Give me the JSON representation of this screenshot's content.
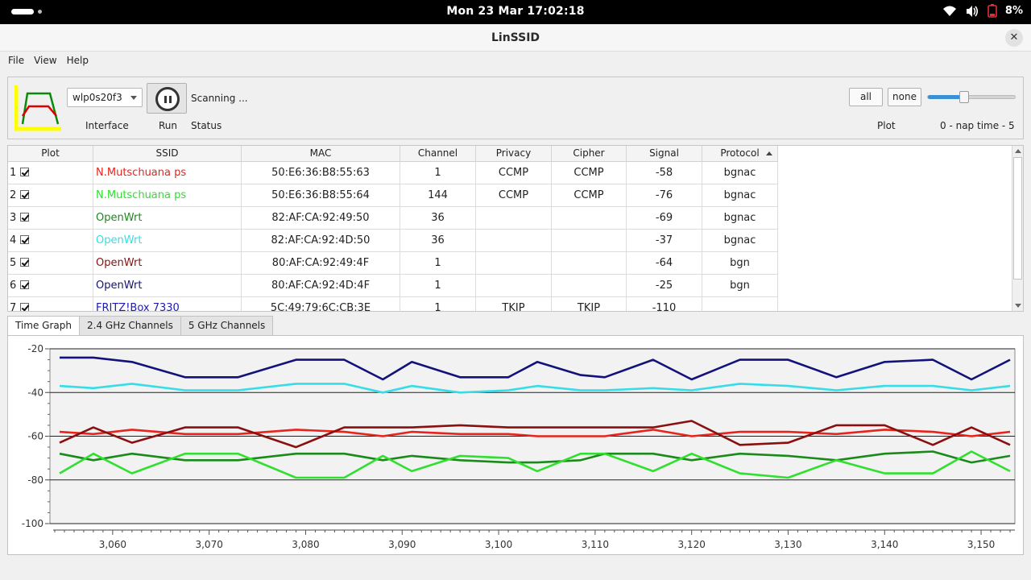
{
  "system_bar": {
    "clock": "Mon 23 Mar  17:02:18",
    "battery": "8%"
  },
  "window": {
    "title": "LinSSID"
  },
  "menu": [
    "File",
    "View",
    "Help"
  ],
  "controls": {
    "interface_value": "wlp0s20f3",
    "interface_label": "Interface",
    "run_label": "Run",
    "status_value": "Scanning ...",
    "status_label": "Status",
    "all_button": "all",
    "none_button": "none",
    "plot_label": "Plot",
    "nap_label": "0 - nap time - 5",
    "nap_time": 2
  },
  "table": {
    "columns": [
      "Plot",
      "SSID",
      "MAC",
      "Channel",
      "Privacy",
      "Cipher",
      "Signal",
      "Protocol"
    ],
    "rows": [
      {
        "num": "1",
        "ssid": "N.Mutschuana ps",
        "color": "#e8241c",
        "mac": "50:E6:36:B8:55:63",
        "channel": "1",
        "privacy": "CCMP",
        "cipher": "CCMP",
        "signal": "-58",
        "protocol": "bgnac"
      },
      {
        "num": "2",
        "ssid": "N.Mutschuana ps",
        "color": "#2fe02f",
        "mac": "50:E6:36:B8:55:64",
        "channel": "144",
        "privacy": "CCMP",
        "cipher": "CCMP",
        "signal": "-76",
        "protocol": "bgnac"
      },
      {
        "num": "3",
        "ssid": "OpenWrt",
        "color": "#1a8a1a",
        "mac": "82:AF:CA:92:49:50",
        "channel": "36",
        "privacy": "",
        "cipher": "",
        "signal": "-69",
        "protocol": "bgnac"
      },
      {
        "num": "4",
        "ssid": "OpenWrt",
        "color": "#36dde8",
        "mac": "82:AF:CA:92:4D:50",
        "channel": "36",
        "privacy": "",
        "cipher": "",
        "signal": "-37",
        "protocol": "bgnac"
      },
      {
        "num": "5",
        "ssid": "OpenWrt",
        "color": "#8a1010",
        "mac": "80:AF:CA:92:49:4F",
        "channel": "1",
        "privacy": "",
        "cipher": "",
        "signal": "-64",
        "protocol": "bgn"
      },
      {
        "num": "6",
        "ssid": "OpenWrt",
        "color": "#12127a",
        "mac": "80:AF:CA:92:4D:4F",
        "channel": "1",
        "privacy": "",
        "cipher": "",
        "signal": "-25",
        "protocol": "bgn"
      },
      {
        "num": "7",
        "ssid": "FRITZ!Box 7330",
        "color": "#1c1cb0",
        "mac": "5C:49:79:6C:CB:3E",
        "channel": "1",
        "privacy": "TKIP",
        "cipher": "TKIP",
        "signal": "-110",
        "protocol": ""
      }
    ]
  },
  "tabs": [
    "Time Graph",
    "2.4 GHz Channels",
    "5 GHz Channels"
  ],
  "chart_data": {
    "type": "line",
    "ylim": [
      -100,
      -20
    ],
    "xlim": [
      3053.5,
      3153.5
    ],
    "yticks": [
      -20,
      -40,
      -60,
      -80,
      -100
    ],
    "xticks": [
      3060,
      3070,
      3080,
      3090,
      3100,
      3110,
      3120,
      3130,
      3140,
      3150
    ],
    "xtick_labels": [
      "3,060",
      "3,070",
      "3,080",
      "3,090",
      "3,100",
      "3,110",
      "3,120",
      "3,130",
      "3,140",
      "3,150"
    ],
    "grid": "horizontal at labelled y ticks",
    "series": [
      {
        "color": "#12127a",
        "points": [
          [
            3054.5,
            -24
          ],
          [
            3058,
            -24
          ],
          [
            3062,
            -26
          ],
          [
            3067.5,
            -33
          ],
          [
            3073,
            -33
          ],
          [
            3079,
            -25
          ],
          [
            3084,
            -25
          ],
          [
            3088,
            -34
          ],
          [
            3091,
            -26
          ],
          [
            3096,
            -33
          ],
          [
            3101,
            -33
          ],
          [
            3104,
            -26
          ],
          [
            3108.5,
            -32
          ],
          [
            3111,
            -33
          ],
          [
            3116,
            -25
          ],
          [
            3120,
            -34
          ],
          [
            3125,
            -25
          ],
          [
            3130,
            -25
          ],
          [
            3135,
            -33
          ],
          [
            3140,
            -26
          ],
          [
            3145,
            -25
          ],
          [
            3149,
            -34
          ],
          [
            3153,
            -25
          ]
        ]
      },
      {
        "color": "#36dde8",
        "points": [
          [
            3054.5,
            -37
          ],
          [
            3058,
            -38
          ],
          [
            3062,
            -36
          ],
          [
            3067.5,
            -39
          ],
          [
            3073,
            -39
          ],
          [
            3079,
            -36
          ],
          [
            3084,
            -36
          ],
          [
            3088,
            -40
          ],
          [
            3091,
            -37
          ],
          [
            3096,
            -40
          ],
          [
            3101,
            -39
          ],
          [
            3104,
            -37
          ],
          [
            3108.5,
            -39
          ],
          [
            3111,
            -39
          ],
          [
            3116,
            -38
          ],
          [
            3120,
            -39
          ],
          [
            3125,
            -36
          ],
          [
            3130,
            -37
          ],
          [
            3135,
            -39
          ],
          [
            3140,
            -37
          ],
          [
            3145,
            -37
          ],
          [
            3149,
            -39
          ],
          [
            3153,
            -37
          ]
        ]
      },
      {
        "color": "#e8241c",
        "points": [
          [
            3054.5,
            -58
          ],
          [
            3058,
            -59
          ],
          [
            3062,
            -57
          ],
          [
            3067.5,
            -59
          ],
          [
            3073,
            -59
          ],
          [
            3079,
            -57
          ],
          [
            3084,
            -58
          ],
          [
            3088,
            -60
          ],
          [
            3091,
            -58
          ],
          [
            3096,
            -59
          ],
          [
            3101,
            -59
          ],
          [
            3104,
            -60
          ],
          [
            3108.5,
            -60
          ],
          [
            3111,
            -60
          ],
          [
            3116,
            -57
          ],
          [
            3120,
            -60
          ],
          [
            3125,
            -58
          ],
          [
            3130,
            -58
          ],
          [
            3135,
            -59
          ],
          [
            3140,
            -57
          ],
          [
            3145,
            -58
          ],
          [
            3149,
            -60
          ],
          [
            3153,
            -58
          ]
        ]
      },
      {
        "color": "#8a1010",
        "points": [
          [
            3054.5,
            -63
          ],
          [
            3058,
            -56
          ],
          [
            3062,
            -63
          ],
          [
            3067.5,
            -56
          ],
          [
            3073,
            -56
          ],
          [
            3079,
            -65
          ],
          [
            3084,
            -56
          ],
          [
            3088,
            -56
          ],
          [
            3091,
            -56
          ],
          [
            3096,
            -55
          ],
          [
            3101,
            -56
          ],
          [
            3104,
            -56
          ],
          [
            3108.5,
            -56
          ],
          [
            3111,
            -56
          ],
          [
            3116,
            -56
          ],
          [
            3120,
            -53
          ],
          [
            3125,
            -64
          ],
          [
            3130,
            -63
          ],
          [
            3135,
            -55
          ],
          [
            3140,
            -55
          ],
          [
            3145,
            -64
          ],
          [
            3149,
            -56
          ],
          [
            3153,
            -64
          ]
        ]
      },
      {
        "color": "#1a8a1a",
        "points": [
          [
            3054.5,
            -68
          ],
          [
            3058,
            -71
          ],
          [
            3062,
            -68
          ],
          [
            3067.5,
            -71
          ],
          [
            3073,
            -71
          ],
          [
            3079,
            -68
          ],
          [
            3084,
            -68
          ],
          [
            3088,
            -71
          ],
          [
            3091,
            -69
          ],
          [
            3096,
            -71
          ],
          [
            3101,
            -72
          ],
          [
            3104,
            -72
          ],
          [
            3108.5,
            -71
          ],
          [
            3111,
            -68
          ],
          [
            3116,
            -68
          ],
          [
            3120,
            -71
          ],
          [
            3125,
            -68
          ],
          [
            3130,
            -69
          ],
          [
            3135,
            -71
          ],
          [
            3140,
            -68
          ],
          [
            3145,
            -67
          ],
          [
            3149,
            -72
          ],
          [
            3153,
            -69
          ]
        ]
      },
      {
        "color": "#2fe02f",
        "points": [
          [
            3054.5,
            -77
          ],
          [
            3058,
            -68
          ],
          [
            3062,
            -77
          ],
          [
            3067.5,
            -68
          ],
          [
            3073,
            -68
          ],
          [
            3079,
            -79
          ],
          [
            3084,
            -79
          ],
          [
            3088,
            -69
          ],
          [
            3091,
            -76
          ],
          [
            3096,
            -69
          ],
          [
            3101,
            -70
          ],
          [
            3104,
            -76
          ],
          [
            3108.5,
            -68
          ],
          [
            3111,
            -68
          ],
          [
            3116,
            -76
          ],
          [
            3120,
            -68
          ],
          [
            3125,
            -77
          ],
          [
            3130,
            -79
          ],
          [
            3135,
            -71
          ],
          [
            3140,
            -77
          ],
          [
            3145,
            -77
          ],
          [
            3149,
            -67
          ],
          [
            3153,
            -76
          ]
        ]
      }
    ]
  }
}
